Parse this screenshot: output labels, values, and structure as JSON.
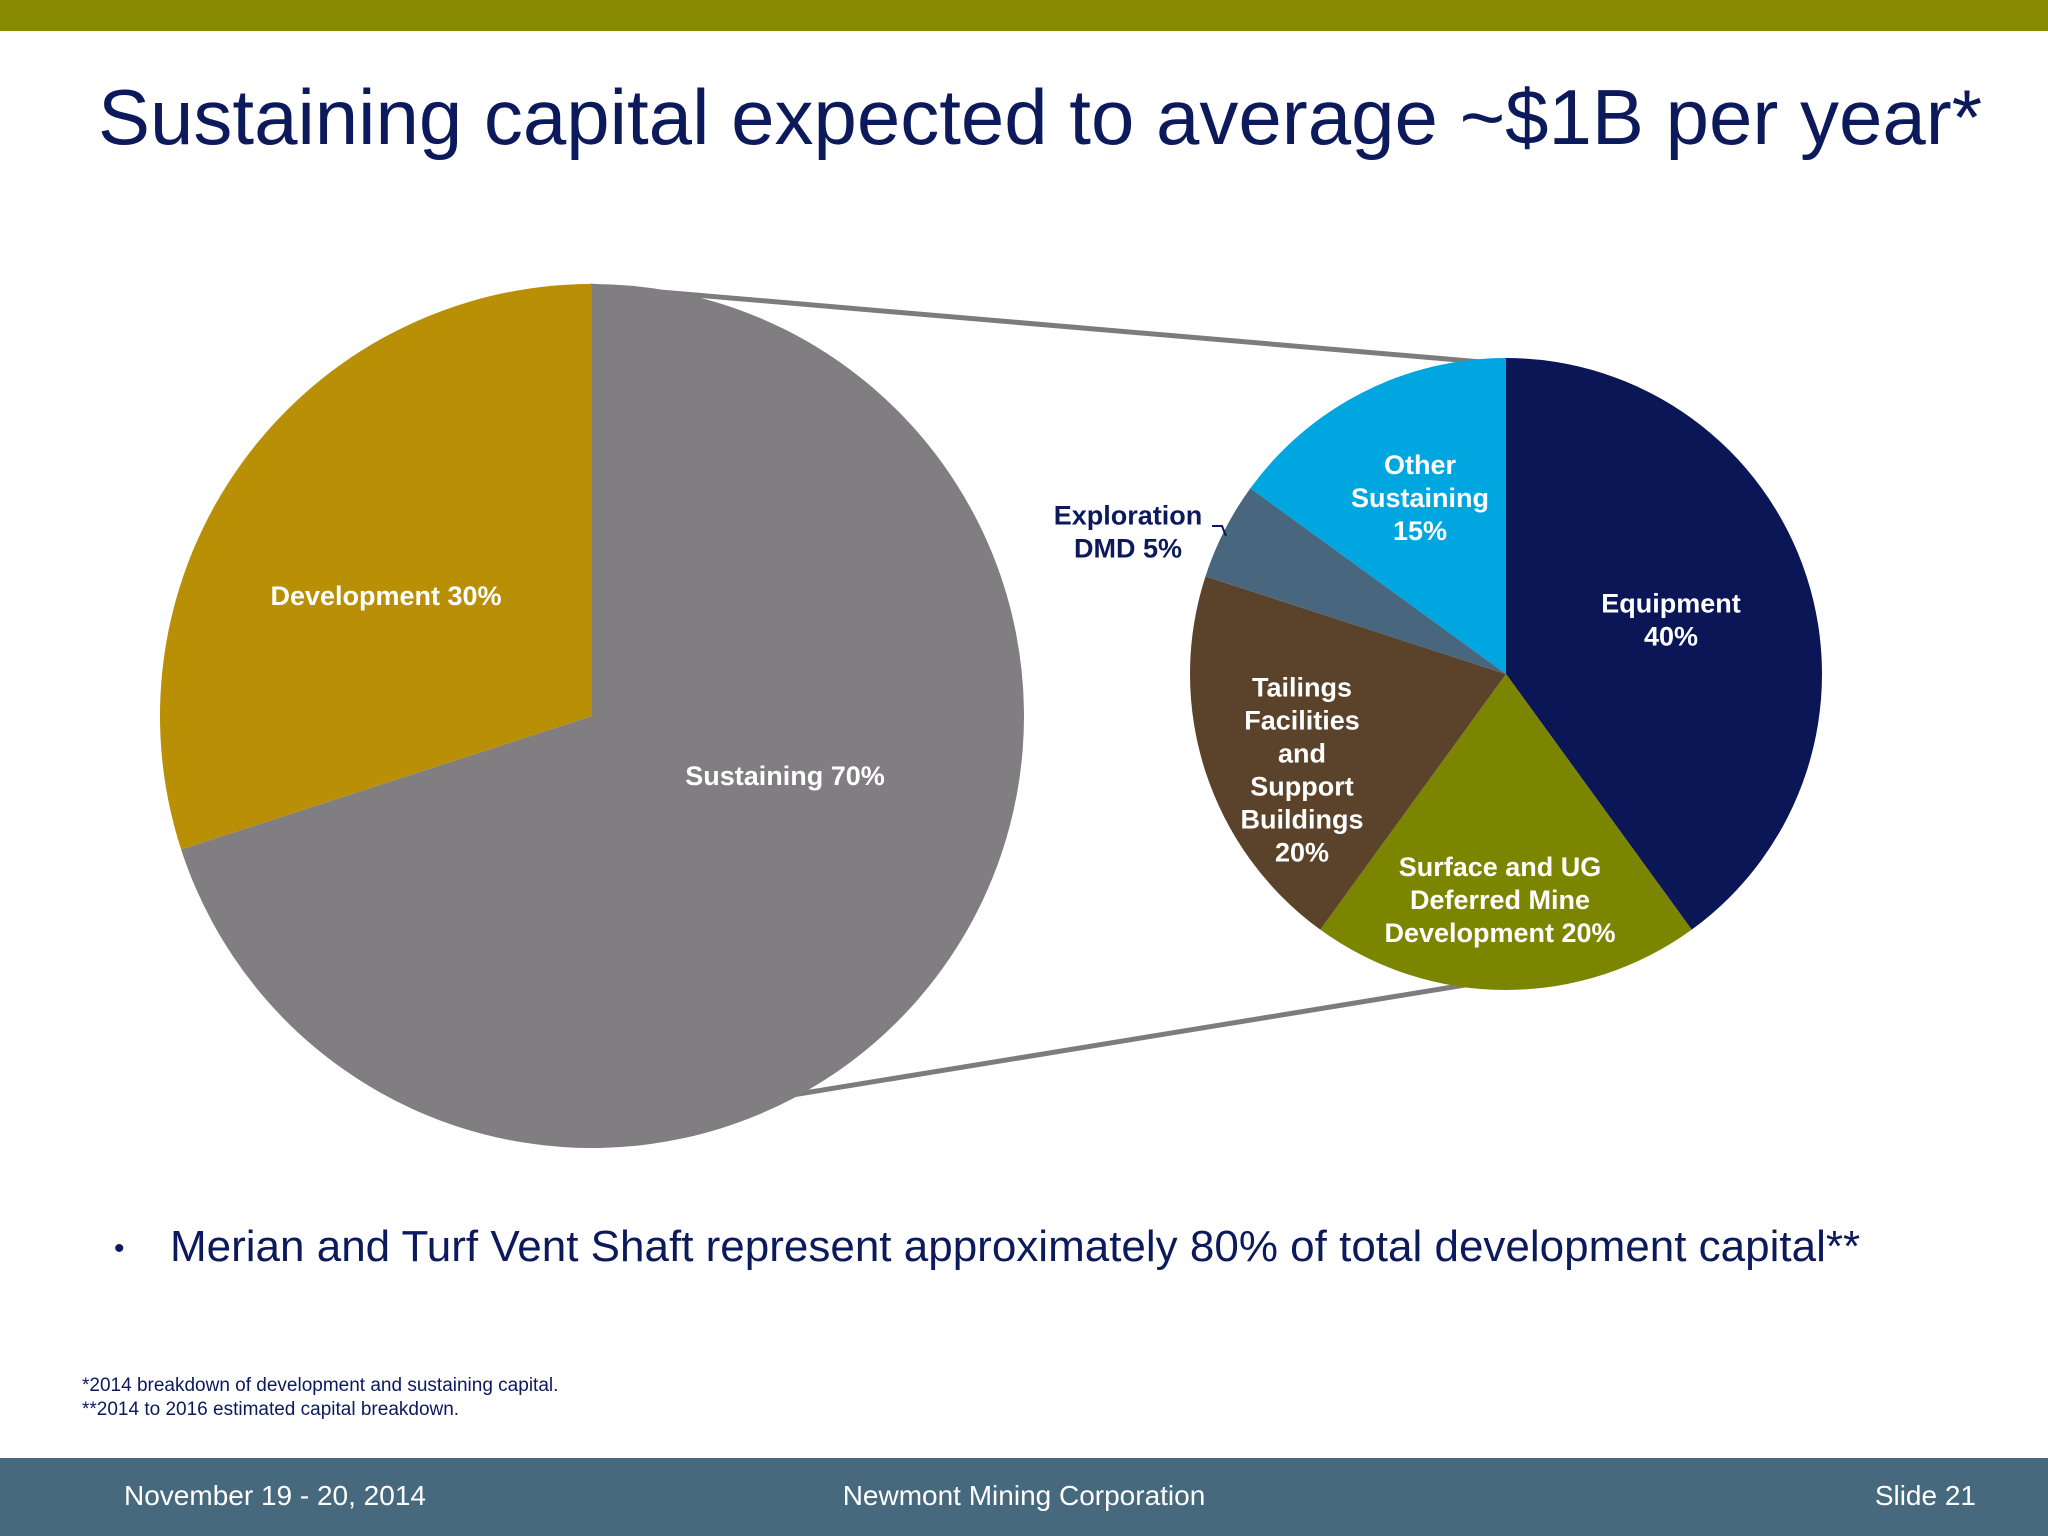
{
  "title": "Sustaining capital expected to average ~$1B per year*",
  "colors": {
    "top_bar": "#878a00",
    "footer_bar": "#46697e",
    "title_text": "#0c1a5c",
    "connector": "#7d7b7c"
  },
  "chart_data": [
    {
      "type": "pie",
      "slices": [
        {
          "label": "Sustaining 70%",
          "value": 70,
          "color": "#807e80"
        },
        {
          "label": "Development 30%",
          "value": 30,
          "color": "#b98f05"
        }
      ]
    },
    {
      "type": "pie",
      "slices": [
        {
          "label": "Equipment\n40%",
          "value": 40,
          "color": "#0b1656"
        },
        {
          "label": "Surface and UG\nDeferred Mine\nDevelopment 20%",
          "value": 20,
          "color": "#7c8500"
        },
        {
          "label": "Tailings\nFacilities\nand\nSupport\nBuildings\n20%",
          "value": 20,
          "color": "#5b432b"
        },
        {
          "label": "Exploration\nDMD 5%",
          "value": 5,
          "color": "#48677e"
        },
        {
          "label": "Other\nSustaining\n15%",
          "value": 15,
          "color": "#00a6e0"
        }
      ]
    }
  ],
  "bullets": [
    "Merian and Turf Vent Shaft represent approximately 80% of total development capital**"
  ],
  "footnotes": [
    "*2014 breakdown of development and sustaining capital.",
    "**2014 to 2016 estimated capital breakdown."
  ],
  "footer": {
    "date": "November 19 - 20, 2014",
    "company": "Newmont Mining Corporation",
    "slide": "Slide 21"
  }
}
